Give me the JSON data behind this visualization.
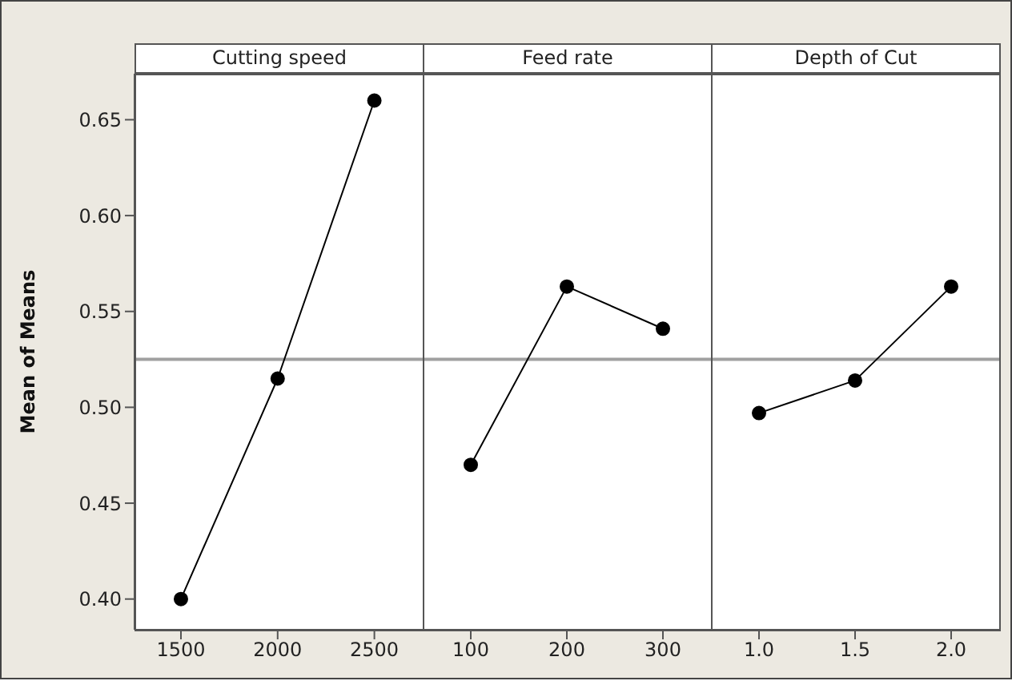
{
  "chart_data": [
    {
      "type": "line",
      "title": "Cutting speed",
      "ylabel": "Mean of Means",
      "x": [
        1500,
        2000,
        2500
      ],
      "values": [
        0.4,
        0.515,
        0.66
      ],
      "xlim": [
        1260,
        2750
      ],
      "xticks": [
        1500,
        2000,
        2500
      ],
      "ylim": [
        0.384,
        0.674
      ],
      "yticks": [
        {
          "value": 0.4,
          "label": "0.40"
        },
        {
          "value": 0.45,
          "label": "0.45"
        },
        {
          "value": 0.5,
          "label": "0.50"
        },
        {
          "value": 0.55,
          "label": "0.55"
        },
        {
          "value": 0.6,
          "label": "0.60"
        },
        {
          "value": 0.65,
          "label": "0.65"
        }
      ],
      "ref_lines": [
        {
          "axis": "y",
          "value": 0.525,
          "color": "#a0a0a0"
        }
      ],
      "color": "#000000",
      "marker": "circle",
      "line_style": "solid",
      "grid": false,
      "legend": false
    },
    {
      "type": "line",
      "title": "Feed rate",
      "x": [
        100,
        200,
        300
      ],
      "values": [
        0.47,
        0.563,
        0.541
      ],
      "xlim": [
        50,
        350
      ],
      "xticks": [
        100,
        200,
        300
      ],
      "ylim": [
        0.384,
        0.674
      ],
      "tick_labels": "x",
      "ref_lines": [
        {
          "axis": "y",
          "value": 0.525,
          "color": "#a0a0a0"
        }
      ],
      "color": "#000000",
      "marker": "circle",
      "line_style": "solid",
      "grid": false,
      "legend": false
    },
    {
      "type": "line",
      "title": "Depth of Cut",
      "x": [
        1.0,
        1.5,
        2.0
      ],
      "values": [
        0.497,
        0.514,
        0.563
      ],
      "xlim": [
        0.75,
        2.25
      ],
      "xticks": [
        {
          "value": 1,
          "label": "1.0"
        },
        {
          "value": 1.5,
          "label": "1.5"
        },
        {
          "value": 2,
          "label": "2.0"
        }
      ],
      "ylim": [
        0.384,
        0.674
      ],
      "tick_labels": "x",
      "ref_lines": [
        {
          "axis": "y",
          "value": 0.525,
          "color": "#a0a0a0"
        }
      ],
      "color": "#000000",
      "marker": "circle",
      "line_style": "solid",
      "grid": false,
      "legend": false
    }
  ]
}
